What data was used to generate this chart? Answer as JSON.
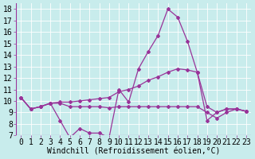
{
  "xlabel": "Windchill (Refroidissement éolien,°C)",
  "background_color": "#c8ecec",
  "line_color": "#993399",
  "xlim": [
    -0.5,
    23.5
  ],
  "ylim": [
    7,
    18.5
  ],
  "yticks": [
    7,
    8,
    9,
    10,
    11,
    12,
    13,
    14,
    15,
    16,
    17,
    18
  ],
  "xticks": [
    0,
    1,
    2,
    3,
    4,
    5,
    6,
    7,
    8,
    9,
    10,
    11,
    12,
    13,
    14,
    15,
    16,
    17,
    18,
    19,
    20,
    21,
    22,
    23
  ],
  "series": [
    [
      10.3,
      9.3,
      9.5,
      9.8,
      8.3,
      6.8,
      7.6,
      7.2,
      7.2,
      6.8,
      11.0,
      9.9,
      12.8,
      14.3,
      15.7,
      18.0,
      17.3,
      15.2,
      12.5,
      8.3,
      9.0,
      9.3,
      9.3,
      9.1
    ],
    [
      10.3,
      9.3,
      9.5,
      9.8,
      9.9,
      9.9,
      10.0,
      10.1,
      10.2,
      10.3,
      10.8,
      11.0,
      11.3,
      11.8,
      12.1,
      12.5,
      12.8,
      12.7,
      12.5,
      9.5,
      9.0,
      9.3,
      9.3,
      9.1
    ],
    [
      10.3,
      9.3,
      9.5,
      9.8,
      9.8,
      9.5,
      9.5,
      9.5,
      9.5,
      9.4,
      9.5,
      9.5,
      9.5,
      9.5,
      9.5,
      9.5,
      9.5,
      9.5,
      9.5,
      9.0,
      8.5,
      9.0,
      9.3,
      9.1
    ]
  ],
  "tick_fontsize": 7,
  "xlabel_fontsize": 7,
  "marker_size": 2.0
}
